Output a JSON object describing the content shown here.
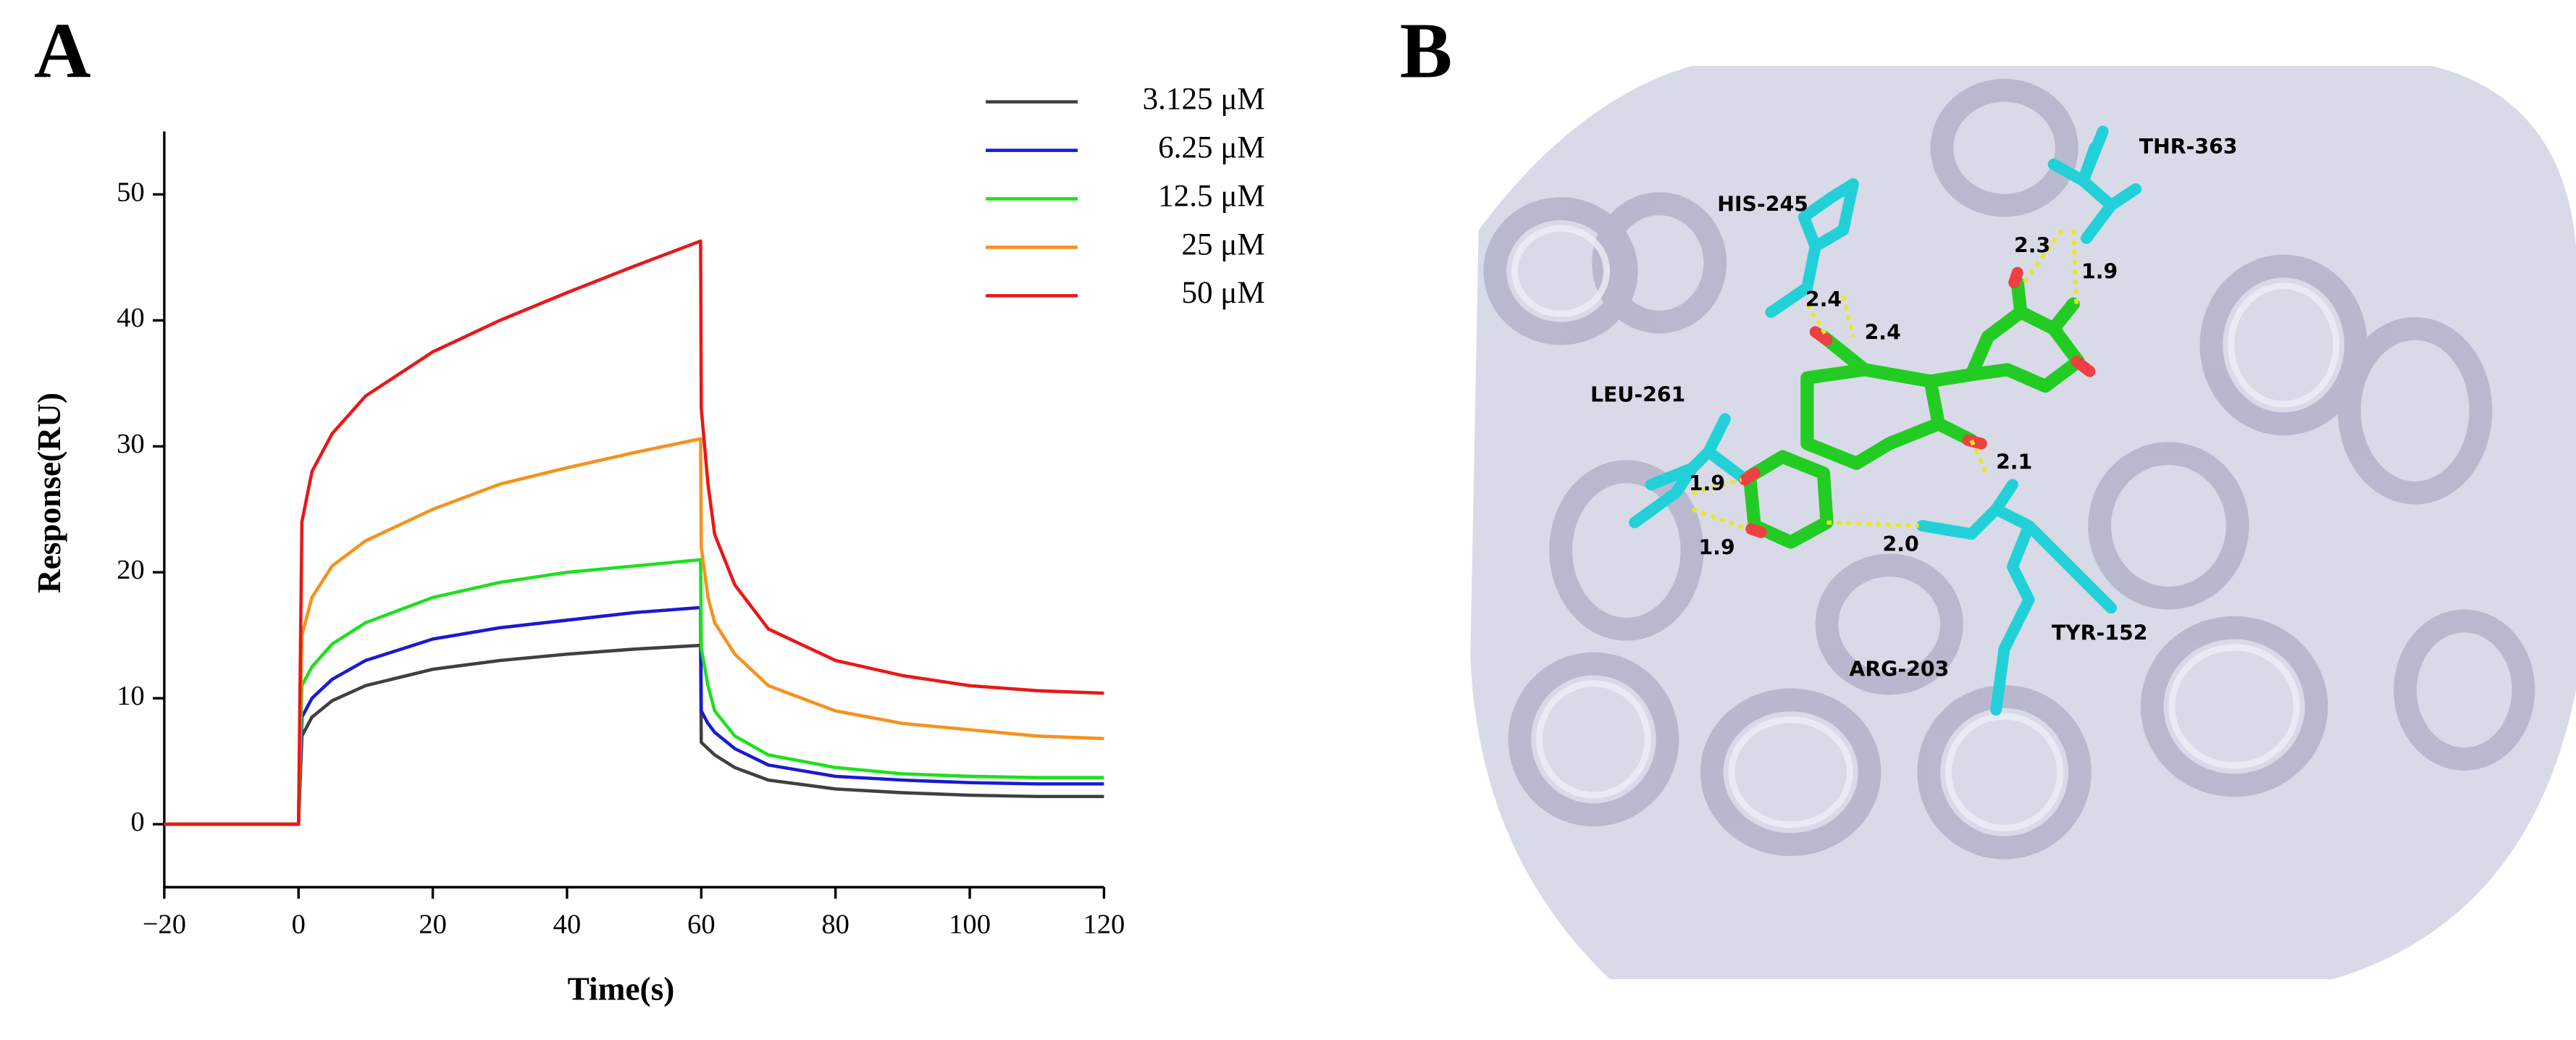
{
  "chart_data": {
    "type": "line",
    "panel_label": "A",
    "x_label": "Time(s)",
    "y_label": "Response(RU)",
    "x": [
      -20,
      -10,
      -1,
      0,
      0.5,
      2,
      5,
      10,
      20,
      30,
      40,
      50,
      59.9,
      60,
      61,
      62,
      65,
      70,
      80,
      90,
      100,
      110,
      120
    ],
    "series": [
      {
        "name": "3.125 μM",
        "color": "#404040",
        "values": [
          0,
          0,
          0,
          0,
          7,
          8.5,
          9.8,
          11,
          12.3,
          13,
          13.5,
          13.9,
          14.2,
          6.5,
          6,
          5.5,
          4.5,
          3.5,
          2.8,
          2.5,
          2.3,
          2.2,
          2.2
        ]
      },
      {
        "name": "6.25 μM",
        "color": "#1a1ad0",
        "values": [
          0,
          0,
          0,
          0,
          8.5,
          10,
          11.5,
          13,
          14.7,
          15.6,
          16.2,
          16.8,
          17.2,
          9,
          8,
          7.3,
          6,
          4.7,
          3.8,
          3.5,
          3.3,
          3.2,
          3.2
        ]
      },
      {
        "name": "12.5 μM",
        "color": "#1ee01e",
        "values": [
          0,
          0,
          0,
          0,
          11,
          12.5,
          14.3,
          16,
          18,
          19.2,
          20,
          20.5,
          21,
          14,
          11,
          9,
          7,
          5.5,
          4.5,
          4,
          3.8,
          3.7,
          3.7
        ]
      },
      {
        "name": "25 μM",
        "color": "#f5921e",
        "values": [
          0,
          0,
          0,
          0,
          15,
          18,
          20.5,
          22.5,
          25,
          27,
          28.3,
          29.5,
          30.6,
          22,
          18,
          16,
          13.5,
          11,
          9,
          8,
          7.5,
          7,
          6.8
        ]
      },
      {
        "name": "50 μM",
        "color": "#e81818",
        "values": [
          0,
          0,
          0,
          0,
          24,
          28,
          31,
          34,
          37.5,
          40,
          42.2,
          44.3,
          46.3,
          33,
          27,
          23,
          19,
          15.5,
          13,
          11.8,
          11,
          10.6,
          10.4
        ]
      }
    ],
    "xlim": [
      -20,
      120
    ],
    "xticks": [
      {
        "value": -20,
        "label": "−20"
      },
      0,
      20,
      40,
      60,
      80,
      100,
      120
    ],
    "ylim": [
      -5,
      55
    ],
    "yticks": [
      0,
      10,
      20,
      30,
      40,
      50
    ],
    "legend": "top-right",
    "grid": false
  },
  "structure": {
    "panel_label": "B",
    "residues": [
      "HIS-245",
      "THR-363",
      "LEU-261",
      "ARG-203",
      "TYR-152"
    ],
    "distances": [
      "2.4",
      "2.4",
      "2.3",
      "1.9",
      "2.1",
      "1.9",
      "1.9",
      "2.0"
    ]
  }
}
